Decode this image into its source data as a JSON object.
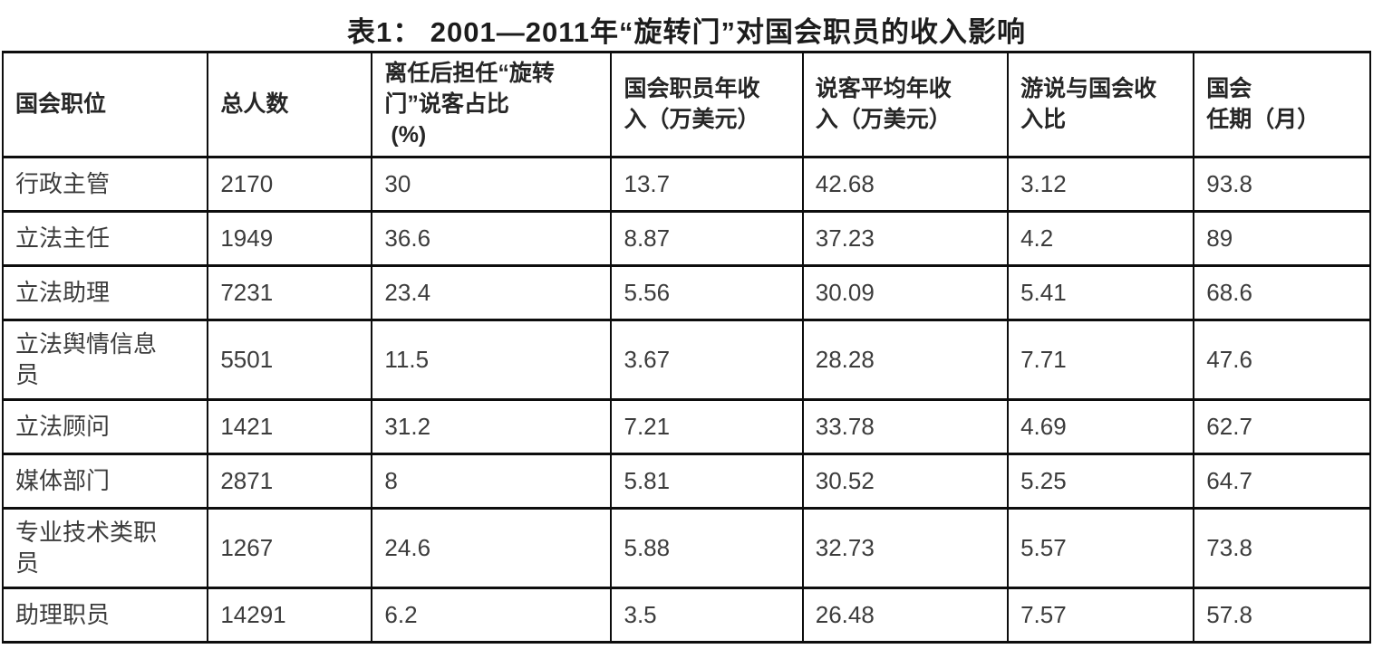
{
  "title": "表1：  2001—2011年“旋转门”对国会职员的收入影响",
  "colors": {
    "background": "#ffffff",
    "border": "#0d0d0d",
    "title_text": "#1c1c1c",
    "header_text": "#262626",
    "body_text": "#3c3c3c"
  },
  "table": {
    "headers": [
      "国会职位",
      "总人数",
      "离任后担任“旋转\n门”说客占比\n (%)",
      "国会职员年收\n入（万美元）",
      "说客平均年收\n入（万美元）",
      "游说与国会收\n入比",
      "国会\n任期（月）"
    ],
    "rows": [
      [
        "行政主管",
        "2170",
        "30",
        "13.7",
        "42.68",
        "3.12",
        "93.8"
      ],
      [
        "立法主任",
        "1949",
        "36.6",
        "8.87",
        "37.23",
        "4.2",
        "89"
      ],
      [
        "立法助理",
        "7231",
        "23.4",
        "5.56",
        "30.09",
        "5.41",
        "68.6"
      ],
      [
        "立法舆情信息\n员",
        "5501",
        "11.5",
        "3.67",
        "28.28",
        "7.71",
        "47.6"
      ],
      [
        "立法顾问",
        "1421",
        "31.2",
        "7.21",
        "33.78",
        "4.69",
        "62.7"
      ],
      [
        "媒体部门",
        "2871",
        "8",
        "5.81",
        "30.52",
        "5.25",
        "64.7"
      ],
      [
        "专业技术类职\n员",
        "1267",
        "24.6",
        "5.88",
        "32.73",
        "5.57",
        "73.8"
      ],
      [
        "助理职员",
        "14291",
        "6.2",
        "3.5",
        "26.48",
        "7.57",
        "57.8"
      ]
    ]
  },
  "chart_data": {
    "type": "table",
    "title": "表1： 2001—2011年“旋转门”对国会职员的收入影响",
    "columns": [
      "国会职位",
      "总人数",
      "离任后担任“旋转门”说客占比（%）",
      "国会职员年收入（万美元）",
      "说客平均年收入（万美元）",
      "游说与国会收入比",
      "国会任期（月）"
    ],
    "rows": [
      {
        "国会职位": "行政主管",
        "总人数": 2170,
        "离任后担任旋转门说客占比_pct": 30,
        "国会职员年收入_万美元": 13.7,
        "说客平均年收入_万美元": 42.68,
        "游说与国会收入比": 3.12,
        "国会任期_月": 93.8
      },
      {
        "国会职位": "立法主任",
        "总人数": 1949,
        "离任后担任旋转门说客占比_pct": 36.6,
        "国会职员年收入_万美元": 8.87,
        "说客平均年收入_万美元": 37.23,
        "游说与国会收入比": 4.2,
        "国会任期_月": 89
      },
      {
        "国会职位": "立法助理",
        "总人数": 7231,
        "离任后担任旋转门说客占比_pct": 23.4,
        "国会职员年收入_万美元": 5.56,
        "说客平均年收入_万美元": 30.09,
        "游说与国会收入比": 5.41,
        "国会任期_月": 68.6
      },
      {
        "国会职位": "立法舆情信息员",
        "总人数": 5501,
        "离任后担任旋转门说客占比_pct": 11.5,
        "国会职员年收入_万美元": 3.67,
        "说客平均年收入_万美元": 28.28,
        "游说与国会收入比": 7.71,
        "国会任期_月": 47.6
      },
      {
        "国会职位": "立法顾问",
        "总人数": 1421,
        "离任后担任旋转门说客占比_pct": 31.2,
        "国会职员年收入_万美元": 7.21,
        "说客平均年收入_万美元": 33.78,
        "游说与国会收入比": 4.69,
        "国会任期_月": 62.7
      },
      {
        "国会职位": "媒体部门",
        "总人数": 2871,
        "离任后担任旋转门说客占比_pct": 8,
        "国会职员年收入_万美元": 5.81,
        "说客平均年收入_万美元": 30.52,
        "游说与国会收入比": 5.25,
        "国会任期_月": 64.7
      },
      {
        "国会职位": "专业技术类职员",
        "总人数": 1267,
        "离任后担任旋转门说客占比_pct": 24.6,
        "国会职员年收入_万美元": 5.88,
        "说客平均年收入_万美元": 32.73,
        "游说与国会收入比": 5.57,
        "国会任期_月": 73.8
      },
      {
        "国会职位": "助理职员",
        "总人数": 14291,
        "离任后担任旋转门说客占比_pct": 6.2,
        "国会职员年收入_万美元": 3.5,
        "说客平均年收入_万美元": 26.48,
        "游说与国会收入比": 7.57,
        "国会任期_月": 57.8
      }
    ],
    "layout": {
      "grid": true,
      "header_bold": true,
      "title_position": "top-center"
    }
  }
}
